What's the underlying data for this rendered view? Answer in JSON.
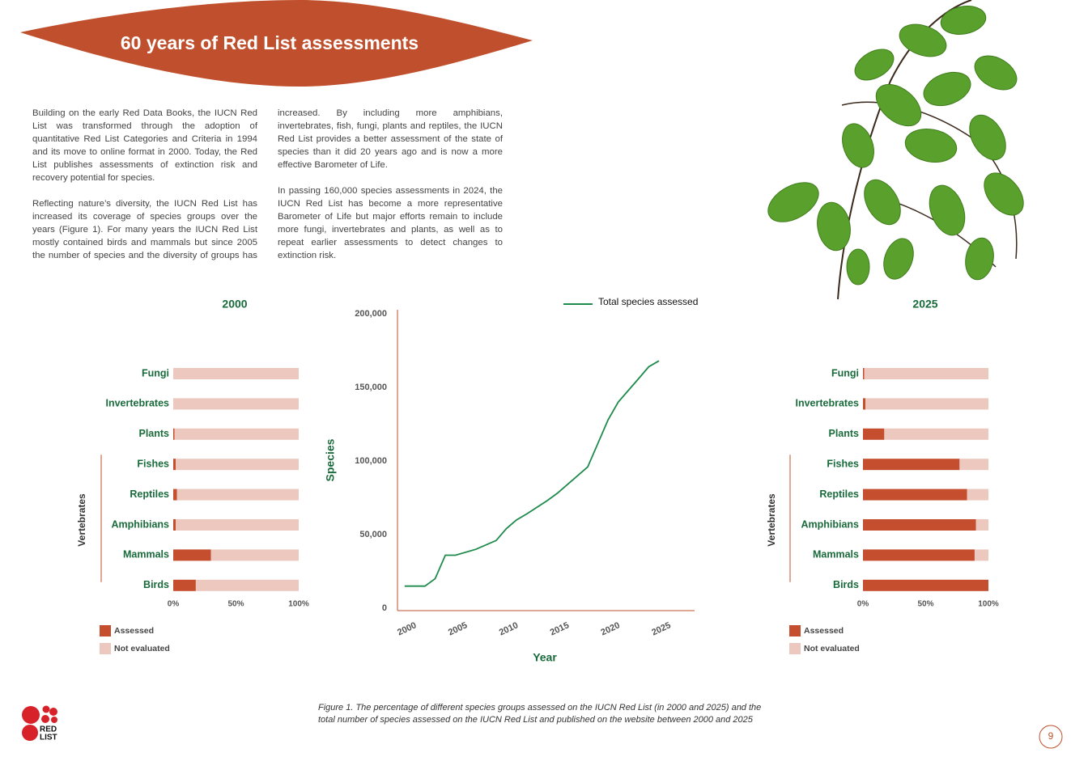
{
  "header": {
    "title": "60 years of Red List assessments"
  },
  "body": {
    "paragraphs": [
      "Building on the early Red Data Books, the IUCN Red List was transformed through the adoption of quantitative Red List Categories and Criteria in 1994 and its move to online format in 2000. Today, the Red List publishes assessments of extinction risk and recovery potential for species.",
      "Reflecting nature’s diversity, the IUCN Red List has increased its coverage of species groups over the years (Figure 1). For many years the IUCN Red List mostly contained birds and mammals but since 2005 the number of species and the diversity of groups has increased. By including more amphibians, invertebrates, fish, fungi, plants and reptiles, the IUCN Red List provides a better assessment of the state of species than it did 20 years ago and is now a more effective Barometer of Life.",
      "In passing 160,000 species assessments in 2024, the IUCN Red List has become a more representative Barometer of Life but major efforts remain to include more fungi, invertebrates and plants, as well as to repeat earlier assessments to detect changes to extinction risk."
    ]
  },
  "chart_data": [
    {
      "type": "bar",
      "orientation": "horizontal",
      "stacked": true,
      "title": "2000",
      "categories": [
        "Fungi",
        "Invertebrates",
        "Plants",
        "Fishes",
        "Reptiles",
        "Amphibians",
        "Mammals",
        "Birds"
      ],
      "series": [
        {
          "name": "Assessed",
          "color": "#c44e2e",
          "values": [
            0,
            0,
            1,
            2,
            3,
            2,
            30,
            18
          ]
        },
        {
          "name": "Not evaluated",
          "color": "#edc8bf",
          "values": [
            100,
            100,
            99,
            98,
            97,
            98,
            70,
            82
          ]
        }
      ],
      "xlim": [
        0,
        100
      ],
      "xticks": [
        {
          "value": 0,
          "label": "0%"
        },
        {
          "value": 50,
          "label": "50%"
        },
        {
          "value": 100,
          "label": "100%"
        }
      ],
      "annotation": "Vertebrates"
    },
    {
      "type": "line",
      "x": [
        2000,
        2002,
        2003,
        2004,
        2005,
        2007,
        2009,
        2010,
        2011,
        2012,
        2014,
        2015,
        2017,
        2018,
        2019,
        2020,
        2021,
        2022,
        2023,
        2024,
        2025
      ],
      "series": [
        {
          "name": "Total species assessed",
          "color": "#1e8a4c",
          "values": [
            15000,
            15000,
            20000,
            36000,
            36000,
            40000,
            46000,
            54000,
            60000,
            64000,
            73000,
            78000,
            90000,
            96000,
            112000,
            128000,
            140000,
            148000,
            156000,
            164000,
            168000
          ]
        }
      ],
      "xlabel": "Year",
      "ylabel": "Species",
      "xlim": [
        1999.3,
        2028.5
      ],
      "xticks": [
        2000,
        2005,
        2010,
        2015,
        2020,
        2025
      ],
      "ylim": [
        0,
        200000
      ],
      "yticks": [
        0,
        {
          "value": 50000,
          "label": "50,000"
        },
        {
          "value": 100000,
          "label": "100,000"
        },
        {
          "value": 150000,
          "label": "150,000"
        },
        {
          "value": 200000,
          "label": "200,000"
        }
      ]
    },
    {
      "type": "bar",
      "orientation": "horizontal",
      "stacked": true,
      "title": "2025",
      "categories": [
        "Fungi",
        "Invertebrates",
        "Plants",
        "Fishes",
        "Reptiles",
        "Amphibians",
        "Mammals",
        "Birds"
      ],
      "series": [
        {
          "name": "Assessed",
          "color": "#c44e2e",
          "values": [
            1,
            2,
            17,
            77,
            83,
            90,
            89,
            100
          ]
        },
        {
          "name": "Not evaluated",
          "color": "#edc8bf",
          "values": [
            99,
            98,
            83,
            23,
            17,
            10,
            11,
            0
          ]
        }
      ],
      "xlim": [
        0,
        100
      ],
      "xticks": [
        {
          "value": 0,
          "label": "0%"
        },
        {
          "value": 50,
          "label": "50%"
        },
        {
          "value": 100,
          "label": "100%"
        }
      ],
      "annotation": "Vertebrates"
    }
  ],
  "caption": "Figure 1. The percentage of different species groups assessed on the IUCN Red List (in 2000 and 2025) and the total number of species assessed on the IUCN Red List and published on the website between 2000 and 2025",
  "logo": {
    "line1": "RED",
    "line2": "LIST"
  },
  "page_number": "9"
}
